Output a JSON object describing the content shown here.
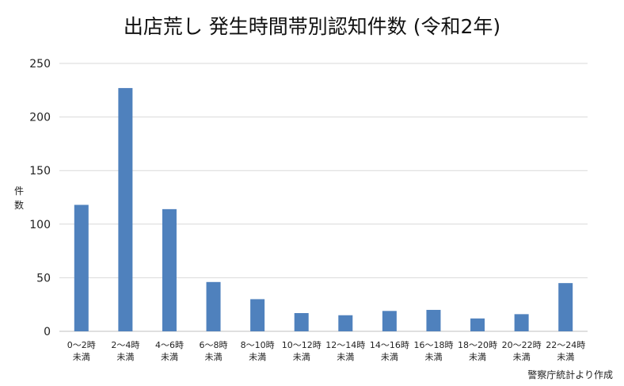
{
  "chart_data": {
    "type": "bar",
    "title": "出店荒し 発生時間帯別認知件数 (令和2年)",
    "ylabel": "件数",
    "xlabel": "",
    "ylim": [
      0,
      250
    ],
    "yticks": [
      0,
      50,
      100,
      150,
      200,
      250
    ],
    "grid": true,
    "bar_color": "#4f81bd",
    "categories": [
      "0～2時未満",
      "2～4時未満",
      "4～6時未満",
      "6～8時未満",
      "8～10時未満",
      "10～12時未満",
      "12～14時未満",
      "14～16時未満",
      "16～18時未満",
      "18～20時未満",
      "20～22時未満",
      "22～24時未満"
    ],
    "category_lines": [
      [
        "0～2時",
        "未満"
      ],
      [
        "2～4時",
        "未満"
      ],
      [
        "4～6時",
        "未満"
      ],
      [
        "6～8時",
        "未満"
      ],
      [
        "8～10時",
        "未満"
      ],
      [
        "10～12時",
        "未満"
      ],
      [
        "12～14時",
        "未満"
      ],
      [
        "14～16時",
        "未満"
      ],
      [
        "16～18時",
        "未満"
      ],
      [
        "18～20時",
        "未満"
      ],
      [
        "20～22時",
        "未満"
      ],
      [
        "22～24時",
        "未満"
      ]
    ],
    "values": [
      118,
      227,
      114,
      46,
      30,
      17,
      15,
      19,
      20,
      12,
      16,
      45
    ]
  },
  "source": "警察庁統計より作成"
}
